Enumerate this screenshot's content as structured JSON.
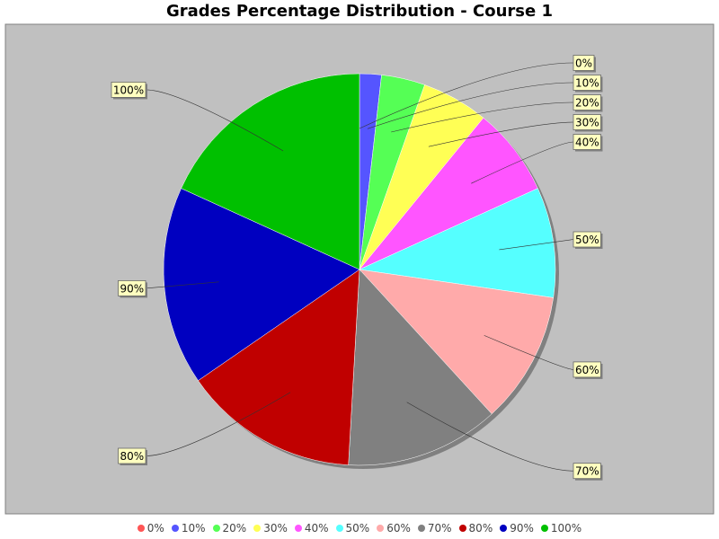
{
  "chart_data": {
    "type": "pie",
    "title": "Grades Percentage Distribution - Course 1",
    "categories": [
      "0%",
      "10%",
      "20%",
      "30%",
      "40%",
      "50%",
      "60%",
      "70%",
      "80%",
      "90%",
      "100%"
    ],
    "values": [
      0,
      1.8,
      3.6,
      5.5,
      7.3,
      9.1,
      10.9,
      12.7,
      14.5,
      16.4,
      18.2
    ],
    "colors": [
      "#ff5555",
      "#5555ff",
      "#55ff55",
      "#ffff55",
      "#ff55ff",
      "#55ffff",
      "#ffaaaa",
      "#808080",
      "#c00000",
      "#0000c0",
      "#00c000"
    ],
    "background": "#c0c0c0",
    "label_background": "#ffffc0",
    "legend_position": "bottom"
  }
}
